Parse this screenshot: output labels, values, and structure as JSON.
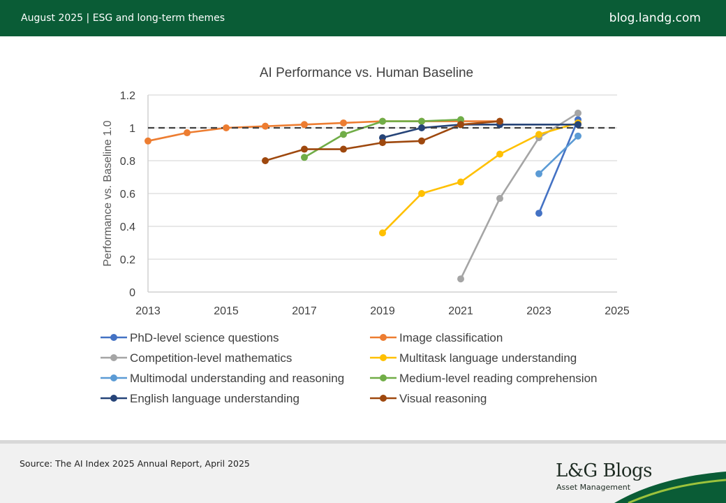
{
  "header": {
    "left_text": "August 2025 | ESG and long-term themes",
    "right_text": "blog.landg.com"
  },
  "colors": {
    "brand_green": "#0a5c36",
    "baseline_line": "#404040",
    "gridline": "#d9d9d9"
  },
  "chart_data": {
    "type": "line",
    "title": "AI Performance vs. Human Baseline",
    "xlabel": "",
    "ylabel": "Performance vs. Baseline 1.0",
    "xlim": [
      2013,
      2025
    ],
    "ylim": [
      0,
      1.2
    ],
    "xticks": [
      "2013",
      "2015",
      "2017",
      "2019",
      "2021",
      "2023",
      "2025"
    ],
    "yticks": [
      "0",
      "0.2",
      "0.4",
      "0.6",
      "0.8",
      "1",
      "1.2"
    ],
    "grid": "horizontal",
    "baseline": 1.0,
    "legend_position": "bottom",
    "series": [
      {
        "name": "PhD-level science questions",
        "color": "#4472c4",
        "x": [
          2023,
          2024
        ],
        "y": [
          0.48,
          1.05
        ]
      },
      {
        "name": "Image classification",
        "color": "#ed7d31",
        "x": [
          2013,
          2014,
          2015,
          2016,
          2017,
          2018,
          2019,
          2020,
          2021,
          2022
        ],
        "y": [
          0.92,
          0.97,
          1.0,
          1.01,
          1.02,
          1.03,
          1.04,
          1.04,
          1.04,
          1.04
        ]
      },
      {
        "name": "Competition-level mathematics",
        "color": "#a5a5a5",
        "x": [
          2021,
          2022,
          2023,
          2024
        ],
        "y": [
          0.08,
          0.57,
          0.94,
          1.09
        ]
      },
      {
        "name": "Multitask language understanding",
        "color": "#ffc000",
        "x": [
          2019,
          2020,
          2021,
          2022,
          2023,
          2024
        ],
        "y": [
          0.36,
          0.6,
          0.67,
          0.84,
          0.96,
          1.03
        ]
      },
      {
        "name": "Multimodal understanding and reasoning",
        "color": "#5b9bd5",
        "x": [
          2023,
          2024
        ],
        "y": [
          0.72,
          0.95
        ]
      },
      {
        "name": "Medium-level reading comprehension",
        "color": "#70ad47",
        "x": [
          2017,
          2018,
          2019,
          2020,
          2021
        ],
        "y": [
          0.82,
          0.96,
          1.04,
          1.04,
          1.05
        ]
      },
      {
        "name": "English language understanding",
        "color": "#264478",
        "x": [
          2019,
          2020,
          2021,
          2022,
          2024
        ],
        "y": [
          0.94,
          1.0,
          1.02,
          1.02,
          1.02
        ]
      },
      {
        "name": "Visual reasoning",
        "color": "#9e480e",
        "x": [
          2016,
          2017,
          2018,
          2019,
          2020,
          2021,
          2022
        ],
        "y": [
          0.8,
          0.87,
          0.87,
          0.91,
          0.92,
          1.02,
          1.04
        ]
      }
    ]
  },
  "footer": {
    "source": "Source: The AI Index 2025 Annual Report, April 2025",
    "logo_main": "L&G Blogs",
    "logo_sub": "Asset Management"
  }
}
